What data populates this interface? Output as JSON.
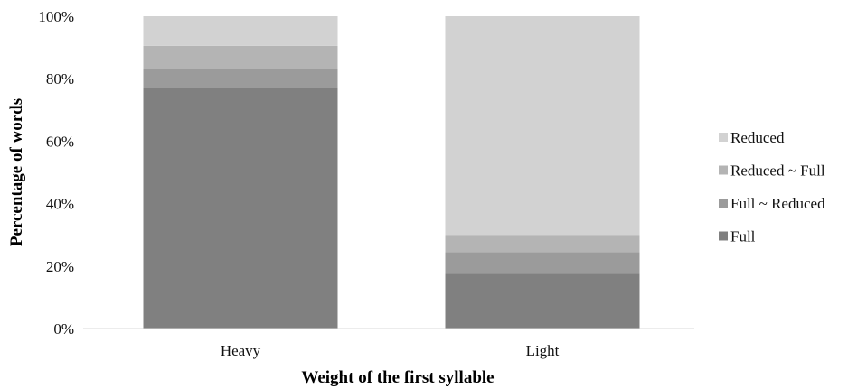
{
  "chart_data": {
    "type": "bar",
    "stacked": true,
    "percent_stacked": true,
    "title": "",
    "xlabel": "Weight of the first syllable",
    "ylabel": "Percentage of words",
    "categories": [
      "Heavy",
      "Light"
    ],
    "ylim": [
      0,
      100
    ],
    "yticks": [
      "0%",
      "20%",
      "40%",
      "60%",
      "80%",
      "100%"
    ],
    "grid": false,
    "legend_position": "right",
    "series": [
      {
        "name": "Full",
        "values": [
          77,
          17.5
        ],
        "color": "#808080"
      },
      {
        "name": "Full ~ Reduced",
        "values": [
          6,
          7
        ],
        "color": "#9b9b9b"
      },
      {
        "name": "Reduced ~ Full",
        "values": [
          7.5,
          5.5
        ],
        "color": "#b4b4b4"
      },
      {
        "name": "Reduced",
        "values": [
          9.5,
          70
        ],
        "color": "#d2d2d2"
      }
    ],
    "legend_order": [
      "Reduced",
      "Reduced ~ Full",
      "Full ~ Reduced",
      "Full"
    ]
  }
}
